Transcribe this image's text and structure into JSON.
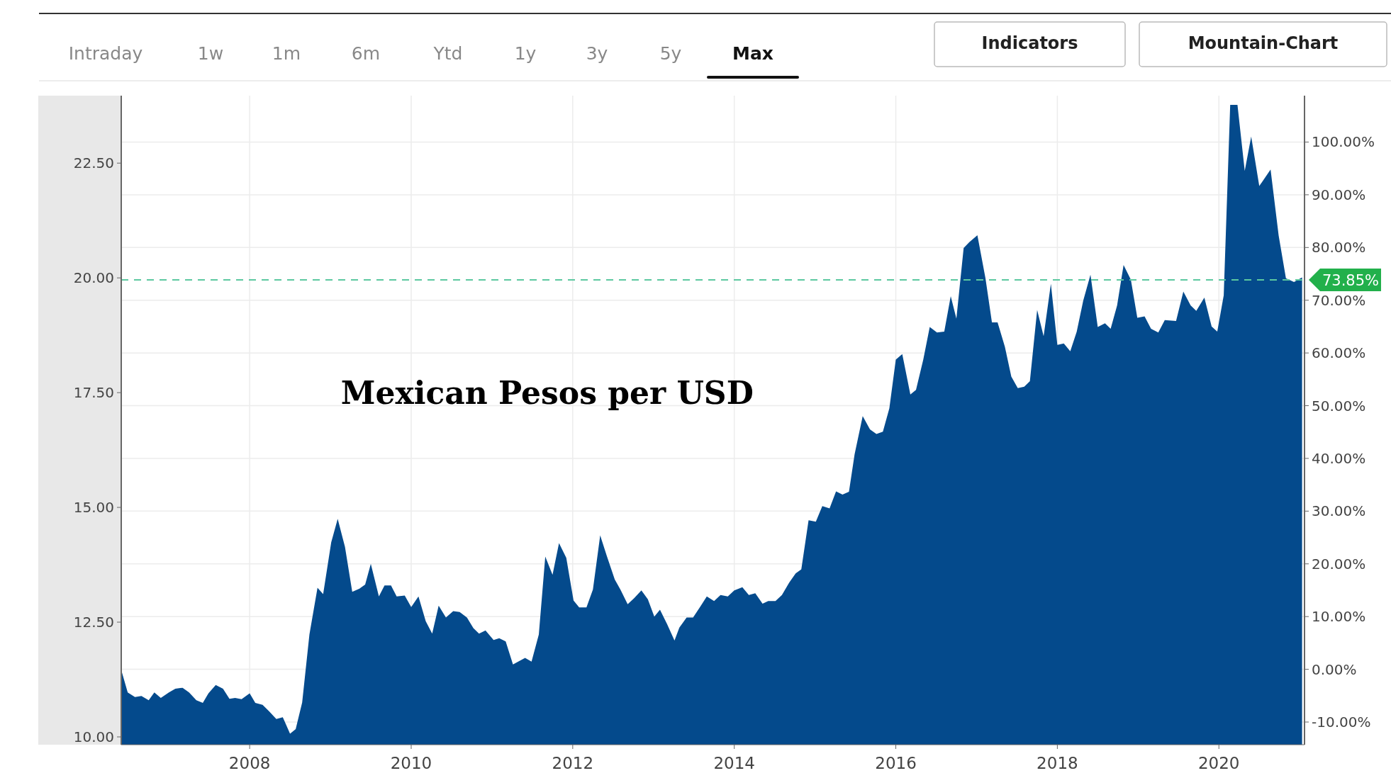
{
  "chart_data": {
    "type": "area",
    "title": "Mexican Pesos per USD",
    "annotations": [
      "Intraday",
      "1w",
      "1m",
      "6m",
      "Ytd",
      "1y",
      "3y",
      "5y",
      "Max",
      "Indicators",
      "Mountain-Chart"
    ],
    "x": [
      2006.41,
      2006.49,
      2006.58,
      2006.66,
      2006.75,
      2006.82,
      2006.9,
      2007.0,
      2007.08,
      2007.17,
      2007.25,
      2007.34,
      2007.42,
      2007.49,
      2007.58,
      2007.67,
      2007.75,
      2007.82,
      2007.9,
      2008.0,
      2008.07,
      2008.16,
      2008.24,
      2008.33,
      2008.41,
      2008.5,
      2008.57,
      2008.65,
      2008.74,
      2008.84,
      2008.91,
      2009.01,
      2009.09,
      2009.18,
      2009.27,
      2009.36,
      2009.43,
      2009.5,
      2009.6,
      2009.67,
      2009.75,
      2009.82,
      2009.92,
      2010.0,
      2010.09,
      2010.18,
      2010.26,
      2010.34,
      2010.43,
      2010.52,
      2010.6,
      2010.69,
      2010.77,
      2010.84,
      2010.92,
      2011.02,
      2011.09,
      2011.17,
      2011.26,
      2011.41,
      2011.49,
      2011.58,
      2011.66,
      2011.75,
      2011.83,
      2011.92,
      2012.01,
      2012.08,
      2012.17,
      2012.25,
      2012.34,
      2012.42,
      2012.52,
      2012.59,
      2012.68,
      2012.76,
      2012.85,
      2012.93,
      2013.01,
      2013.08,
      2013.17,
      2013.26,
      2013.32,
      2013.41,
      2013.49,
      2013.58,
      2013.66,
      2013.75,
      2013.83,
      2013.92,
      2014.0,
      2014.1,
      2014.18,
      2014.26,
      2014.35,
      2014.42,
      2014.51,
      2014.59,
      2014.68,
      2014.76,
      2014.83,
      2014.92,
      2015.01,
      2015.09,
      2015.18,
      2015.26,
      2015.34,
      2015.42,
      2015.49,
      2015.59,
      2015.68,
      2015.76,
      2015.84,
      2015.92,
      2016.0,
      2016.08,
      2016.18,
      2016.25,
      2016.34,
      2016.42,
      2016.51,
      2016.6,
      2016.68,
      2016.75,
      2016.84,
      2016.91,
      2017.01,
      2017.11,
      2017.19,
      2017.26,
      2017.35,
      2017.43,
      2017.51,
      2017.59,
      2017.66,
      2017.75,
      2017.83,
      2017.92,
      2018.0,
      2018.08,
      2018.16,
      2018.24,
      2018.32,
      2018.41,
      2018.5,
      2018.59,
      2018.66,
      2018.74,
      2018.82,
      2018.91,
      2018.99,
      2019.08,
      2019.16,
      2019.25,
      2019.33,
      2019.47,
      2019.56,
      2019.65,
      2019.72,
      2019.82,
      2019.91,
      2019.98,
      2020.06,
      2020.14,
      2020.23,
      2020.32,
      2020.4,
      2020.5,
      2020.64,
      2020.74,
      2020.83,
      2020.93,
      2021.03
    ],
    "series": [
      {
        "color": "#044a8c",
        "values": [
          11.46,
          10.97,
          10.87,
          10.89,
          10.8,
          10.97,
          10.85,
          10.97,
          11.05,
          11.07,
          10.97,
          10.8,
          10.74,
          10.95,
          11.13,
          11.05,
          10.83,
          10.85,
          10.82,
          10.95,
          10.74,
          10.7,
          10.56,
          10.39,
          10.43,
          10.07,
          10.17,
          10.75,
          12.23,
          13.25,
          13.11,
          14.24,
          14.75,
          14.14,
          13.16,
          13.23,
          13.32,
          13.77,
          13.06,
          13.3,
          13.3,
          13.06,
          13.08,
          12.83,
          13.06,
          12.52,
          12.25,
          12.86,
          12.6,
          12.74,
          12.72,
          12.6,
          12.37,
          12.25,
          12.32,
          12.11,
          12.15,
          12.08,
          11.58,
          11.72,
          11.64,
          12.23,
          13.93,
          13.53,
          14.22,
          13.9,
          12.97,
          12.82,
          12.82,
          13.21,
          14.39,
          13.95,
          13.43,
          13.21,
          12.89,
          13.02,
          13.19,
          13.0,
          12.62,
          12.77,
          12.45,
          12.1,
          12.38,
          12.6,
          12.6,
          12.84,
          13.06,
          12.96,
          13.09,
          13.06,
          13.19,
          13.26,
          13.09,
          13.13,
          12.9,
          12.96,
          12.96,
          13.09,
          13.36,
          13.56,
          13.65,
          14.72,
          14.69,
          15.03,
          14.98,
          15.35,
          15.28,
          15.34,
          16.16,
          16.99,
          16.7,
          16.6,
          16.65,
          17.16,
          18.22,
          18.34,
          17.46,
          17.56,
          18.22,
          18.93,
          18.81,
          18.83,
          19.6,
          19.11,
          20.65,
          20.78,
          20.93,
          19.99,
          19.03,
          19.03,
          18.5,
          17.85,
          17.6,
          17.63,
          17.75,
          19.3,
          18.73,
          19.87,
          18.54,
          18.57,
          18.4,
          18.83,
          19.5,
          20.07,
          18.93,
          19.01,
          18.89,
          19.4,
          20.28,
          19.96,
          19.13,
          19.16,
          18.89,
          18.81,
          19.08,
          19.06,
          19.7,
          19.4,
          19.28,
          19.57,
          18.94,
          18.83,
          19.62,
          23.77,
          23.77,
          22.33,
          23.08,
          22.0,
          22.36,
          20.92,
          19.99,
          19.91,
          20.01
        ]
      }
    ],
    "xlim": [
      2006.41,
      2021.06
    ],
    "xticks": [
      2008,
      2010,
      2012,
      2014,
      2016,
      2018,
      2020
    ],
    "ylim": [
      9.83,
      23.97
    ],
    "yticks": [
      {
        "value": 10,
        "label": "10.00"
      },
      {
        "value": 12.5,
        "label": "12.50"
      },
      {
        "value": 15,
        "label": "15.00"
      },
      {
        "value": 17.5,
        "label": "17.50"
      },
      {
        "value": 20,
        "label": "20.00"
      },
      {
        "value": 22.5,
        "label": "22.50"
      }
    ],
    "y2lim": [
      -14.3,
      108.8
    ],
    "y2ticks": [
      {
        "value": -10,
        "label": "-10.00%"
      },
      {
        "value": 0,
        "label": "0.00%"
      },
      {
        "value": 10,
        "label": "10.00%"
      },
      {
        "value": 20,
        "label": "20.00%"
      },
      {
        "value": 30,
        "label": "30.00%"
      },
      {
        "value": 40,
        "label": "40.00%"
      },
      {
        "value": 50,
        "label": "50.00%"
      },
      {
        "value": 60,
        "label": "60.00%"
      },
      {
        "value": 70,
        "label": "70.00%"
      },
      {
        "value": 80,
        "label": "80.00%"
      },
      {
        "value": 90,
        "label": "90.00%"
      },
      {
        "value": 100,
        "label": "100.00%"
      }
    ],
    "ref_lines": [
      {
        "axis": "y2",
        "value": 73.85,
        "label": "73.85%",
        "color": "#5cc8a0",
        "line_style": "dashed"
      }
    ],
    "grid": true
  }
}
